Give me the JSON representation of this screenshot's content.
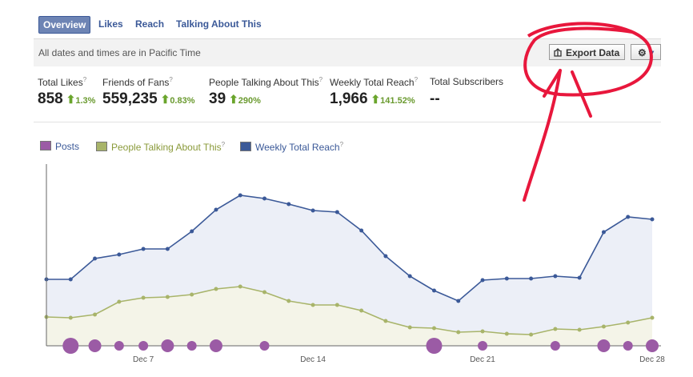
{
  "tabs": [
    "Overview",
    "Likes",
    "Reach",
    "Talking About This"
  ],
  "notice": "All dates and times are in Pacific Time",
  "buttons": {
    "export": "Export Data"
  },
  "help_mark": "?",
  "stats": [
    {
      "label": "Total Likes",
      "value": "858",
      "change": "1.3%"
    },
    {
      "label": "Friends of Fans",
      "value": "559,235",
      "change": "0.83%"
    },
    {
      "label": "People Talking About This",
      "value": "39",
      "change": "290%"
    },
    {
      "label": "Weekly Total Reach",
      "value": "1,966",
      "change": "141.52%"
    },
    {
      "label": "Total Subscribers",
      "value": "--"
    }
  ],
  "chart_data": {
    "type": "line",
    "categories": [
      null,
      null,
      null,
      null,
      "Dec 7",
      null,
      null,
      null,
      null,
      null,
      null,
      "Dec 14",
      null,
      null,
      null,
      null,
      null,
      null,
      "Dec 21",
      null,
      null,
      null,
      null,
      null,
      null,
      "Dec 28"
    ],
    "ylim": [
      0,
      240
    ],
    "series": [
      {
        "name": "Posts",
        "color": "#9b5ba5",
        "kind": "bubble",
        "values": [
          0,
          3,
          2,
          1,
          1,
          2,
          1,
          2,
          0,
          1,
          0,
          0,
          0,
          0,
          0,
          0,
          3,
          0,
          1,
          0,
          0,
          1,
          0,
          2,
          1,
          2
        ]
      },
      {
        "name": "People Talking About This",
        "color": "#a8b46a",
        "fill": "#f4f4e8",
        "values": [
          36,
          35,
          39,
          55,
          60,
          61,
          64,
          71,
          74,
          67,
          56,
          51,
          51,
          44,
          31,
          23,
          22,
          17,
          18,
          15,
          14,
          21,
          20,
          24,
          29,
          35
        ]
      },
      {
        "name": "Weekly Total Reach",
        "color": "#3b5998",
        "fill": "#eceff7",
        "values": [
          83,
          83,
          109,
          114,
          121,
          121,
          143,
          170,
          188,
          184,
          177,
          169,
          167,
          144,
          112,
          87,
          69,
          56,
          82,
          84,
          84,
          87,
          85,
          142,
          161,
          158
        ]
      }
    ]
  }
}
